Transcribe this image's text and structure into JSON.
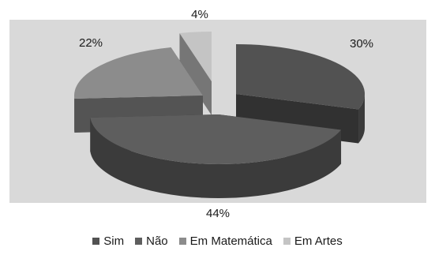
{
  "chart_data": {
    "type": "pie",
    "style": "3d-exploded",
    "title": "",
    "categories": [
      "Sim",
      "Não",
      "Em Matemática",
      "Em Artes"
    ],
    "values": [
      30,
      44,
      22,
      4
    ],
    "labels": [
      "30%",
      "44%",
      "22%",
      "4%"
    ],
    "colors": [
      "#525252",
      "#5e5e5e",
      "#8c8c8c",
      "#c4c4c4"
    ],
    "plot_background": "#d9d9d9",
    "legend_position": "bottom"
  }
}
